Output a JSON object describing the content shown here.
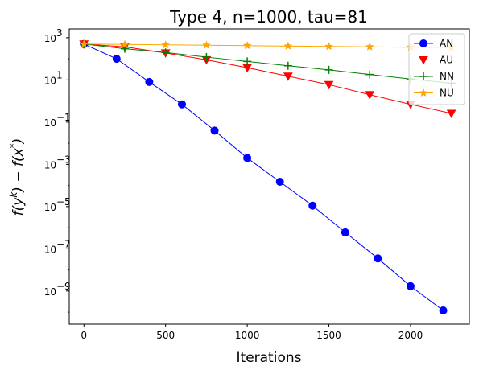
{
  "chart_data": {
    "type": "line",
    "title": "Type 4, n=1000, tau=81",
    "xlabel": "Iterations",
    "ylabel": "f(y^k) − f(x^*)",
    "y_scale": "log",
    "xlim": [
      -90,
      2360
    ],
    "ylim": [
      2.7e-11,
      2600
    ],
    "x_ticks": [
      "0",
      "500",
      "1000",
      "1500",
      "2000"
    ],
    "x_tick_values": [
      0,
      500,
      1000,
      1500,
      2000
    ],
    "y_ticks": [
      {
        "base": "10",
        "exp": "−9",
        "value": 1e-09
      },
      {
        "base": "10",
        "exp": "−7",
        "value": 1e-07
      },
      {
        "base": "10",
        "exp": "−5",
        "value": 1e-05
      },
      {
        "base": "10",
        "exp": "−3",
        "value": 0.001
      },
      {
        "base": "10",
        "exp": "−1",
        "value": 0.1
      },
      {
        "base": "10",
        "exp": "1",
        "value": 10
      },
      {
        "base": "10",
        "exp": "3",
        "value": 1000
      }
    ],
    "legend_position": "top-right",
    "series": [
      {
        "name": "AN",
        "color": "#0000ff",
        "marker": "circle",
        "x": [
          0,
          200,
          400,
          600,
          800,
          1000,
          1200,
          1400,
          1600,
          1800,
          2000,
          2200
        ],
        "y": [
          500,
          100,
          8,
          0.7,
          0.04,
          0.002,
          0.00015,
          1.1e-05,
          6e-07,
          3.5e-08,
          1.7e-09,
          1.2e-10
        ]
      },
      {
        "name": "AU",
        "color": "#ff0000",
        "marker": "triangle-down",
        "x": [
          0,
          250,
          500,
          750,
          1000,
          1250,
          1500,
          1750,
          2000,
          2250
        ],
        "y": [
          500,
          370,
          190,
          90,
          38,
          15,
          6,
          2,
          0.7,
          0.26
        ]
      },
      {
        "name": "NN",
        "color": "#008000",
        "marker": "plus",
        "x": [
          0,
          250,
          500,
          750,
          1000,
          1250,
          1500,
          1750,
          2000,
          2250
        ],
        "y": [
          500,
          300,
          200,
          120,
          75,
          47,
          30,
          18,
          11,
          7
        ]
      },
      {
        "name": "NU",
        "color": "#ffa500",
        "marker": "star",
        "x": [
          0,
          250,
          500,
          750,
          1000,
          1250,
          1500,
          1750,
          2000,
          2250
        ],
        "y": [
          500,
          480,
          460,
          440,
          420,
          400,
          385,
          370,
          355,
          340
        ]
      }
    ]
  }
}
